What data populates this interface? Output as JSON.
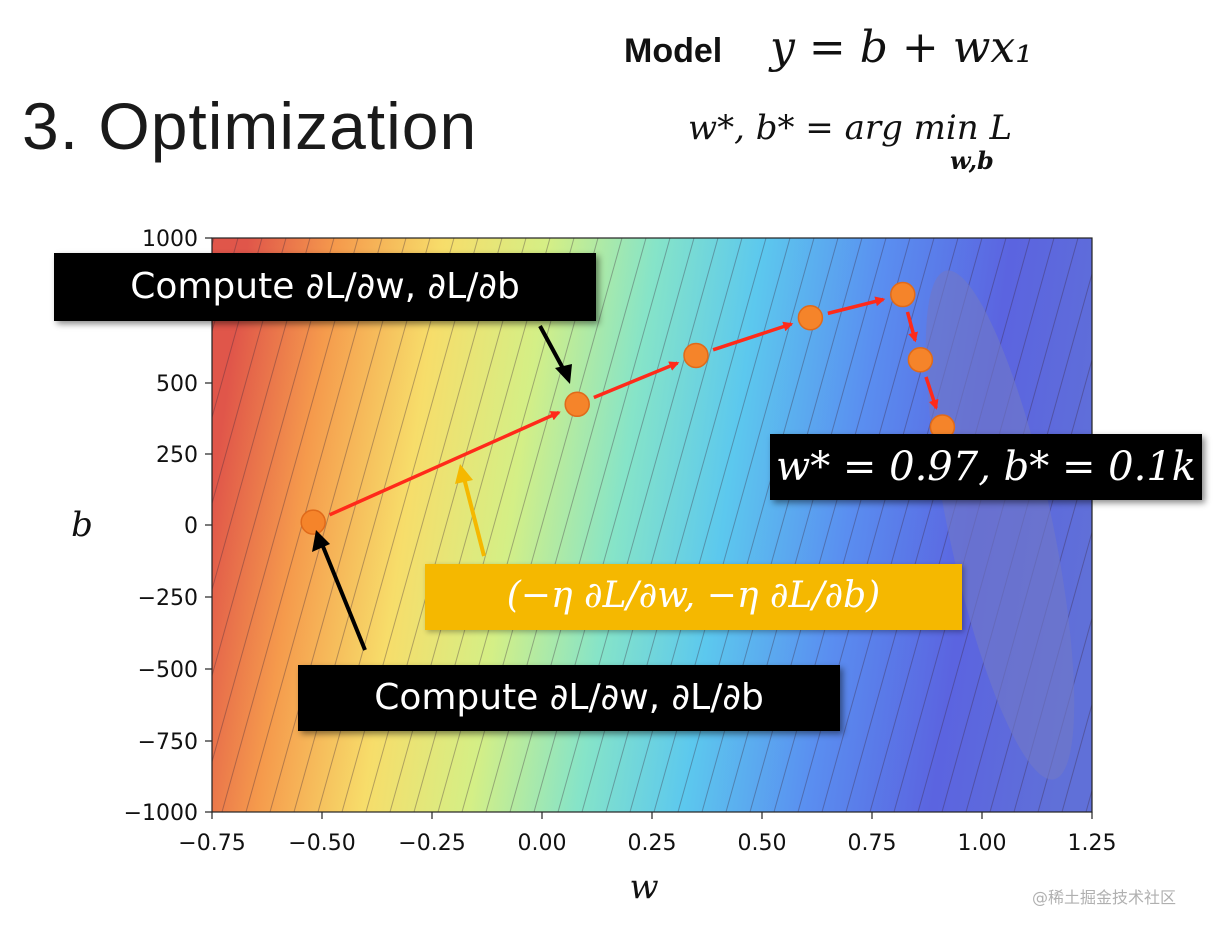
{
  "slide": {
    "title": "3. Optimization",
    "model_label": "Model",
    "model_equation": "y = b + wx₁",
    "optimum_equation": "w*, b* = arg min L",
    "optimum_subscript": "w,b",
    "watermark": "@稀土掘金技术社区"
  },
  "annotations": {
    "compute_top": "Compute ∂L/∂w, ∂L/∂b",
    "compute_bottom": "Compute ∂L/∂w, ∂L/∂b",
    "step": "(−η ∂L/∂w, −η ∂L/∂b)",
    "result": "w* = 0.97, b* = 0.1k"
  },
  "colors": {
    "path_arrow": "#ff2a1a",
    "point_fill": "#f5842a",
    "step_box": "#f5b800",
    "callout_box": "#000000"
  },
  "chart_data": {
    "type": "contour",
    "xlabel": "w",
    "ylabel": "b",
    "xlim": [
      -0.75,
      1.25
    ],
    "ylim": [
      -1000,
      1000
    ],
    "xticks": [
      -0.75,
      -0.5,
      -0.25,
      0.0,
      0.25,
      0.5,
      0.75,
      1.0,
      1.25
    ],
    "xtick_labels": [
      "−0.75",
      "−0.50",
      "−0.25",
      "0.00",
      "0.25",
      "0.50",
      "0.75",
      "1.00",
      "1.25"
    ],
    "yticks": [
      1000,
      500,
      250,
      0,
      -250,
      -500,
      -750,
      -1000
    ],
    "ytick_labels": [
      "1000",
      "500",
      "250",
      "0",
      "−250",
      "−500",
      "−750",
      "−1000"
    ],
    "loss_minimum": {
      "w": 0.97,
      "b": 100
    },
    "colormap": "jet_r",
    "gradient_descent_path": [
      {
        "w": -0.52,
        "b": 10
      },
      {
        "w": 0.08,
        "b": 425
      },
      {
        "w": 0.35,
        "b": 595
      },
      {
        "w": 0.61,
        "b": 725
      },
      {
        "w": 0.82,
        "b": 805
      },
      {
        "w": 0.86,
        "b": 580
      },
      {
        "w": 0.91,
        "b": 345
      }
    ]
  }
}
